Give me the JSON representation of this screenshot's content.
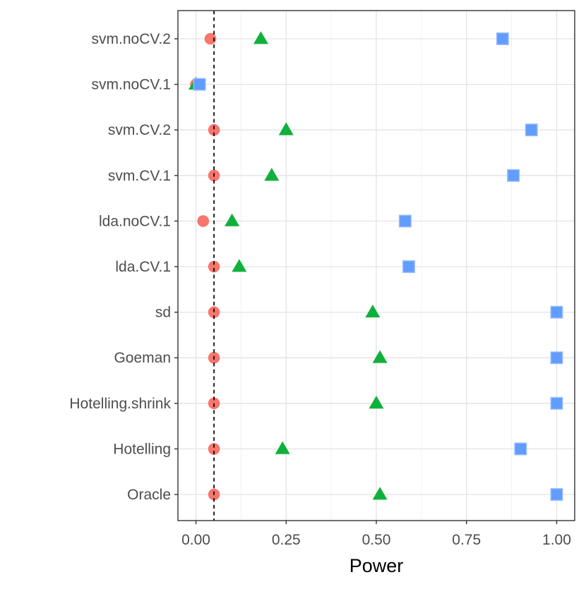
{
  "figure": {
    "background": "#ffffff"
  },
  "chart_data": {
    "type": "scatter",
    "subtype": "horizontal-dot-plot",
    "title": "",
    "xlabel": "Power",
    "ylabel": "",
    "xlim": [
      -0.05,
      1.05
    ],
    "x_ticks": {
      "values": [
        0.0,
        0.25,
        0.5,
        0.75,
        1.0
      ],
      "labels": [
        "0.00",
        "0.25",
        "0.50",
        "0.75",
        "1.00"
      ]
    },
    "x_minor_ticks": [
      0.125,
      0.375,
      0.625,
      0.875
    ],
    "categories": [
      "svm.noCV.2",
      "svm.noCV.1",
      "svm.CV.2",
      "svm.CV.1",
      "lda.noCV.1",
      "lda.CV.1",
      "sd",
      "Goeman",
      "Hotelling.shrink",
      "Hotelling",
      "Oracle"
    ],
    "series": [
      {
        "name": "circle-series",
        "marker": "circle",
        "color": "#F8766D",
        "values": [
          0.04,
          0.0,
          0.05,
          0.05,
          0.02,
          0.05,
          0.05,
          0.05,
          0.05,
          0.05,
          0.05
        ]
      },
      {
        "name": "triangle-series",
        "marker": "triangle",
        "color": "#10B03C",
        "values": [
          0.18,
          0.0,
          0.25,
          0.21,
          0.1,
          0.12,
          0.49,
          0.51,
          0.5,
          0.24,
          0.51
        ]
      },
      {
        "name": "square-series",
        "marker": "square",
        "color": "#619CFF",
        "square_edge_color": "#9BBFFF",
        "values": [
          0.85,
          0.01,
          0.93,
          0.88,
          0.58,
          0.59,
          1.0,
          1.0,
          1.0,
          0.9,
          1.0
        ]
      }
    ],
    "reference_line": {
      "x": 0.05,
      "style": "dashed",
      "color": "#000000"
    },
    "grid": {
      "major_color": "#E3E3E3",
      "minor_color": "#EFEFEF",
      "panel_bg": "#FFFFFF",
      "panel_border": "#333333",
      "tick_color": "#333333"
    },
    "legend": "none"
  }
}
